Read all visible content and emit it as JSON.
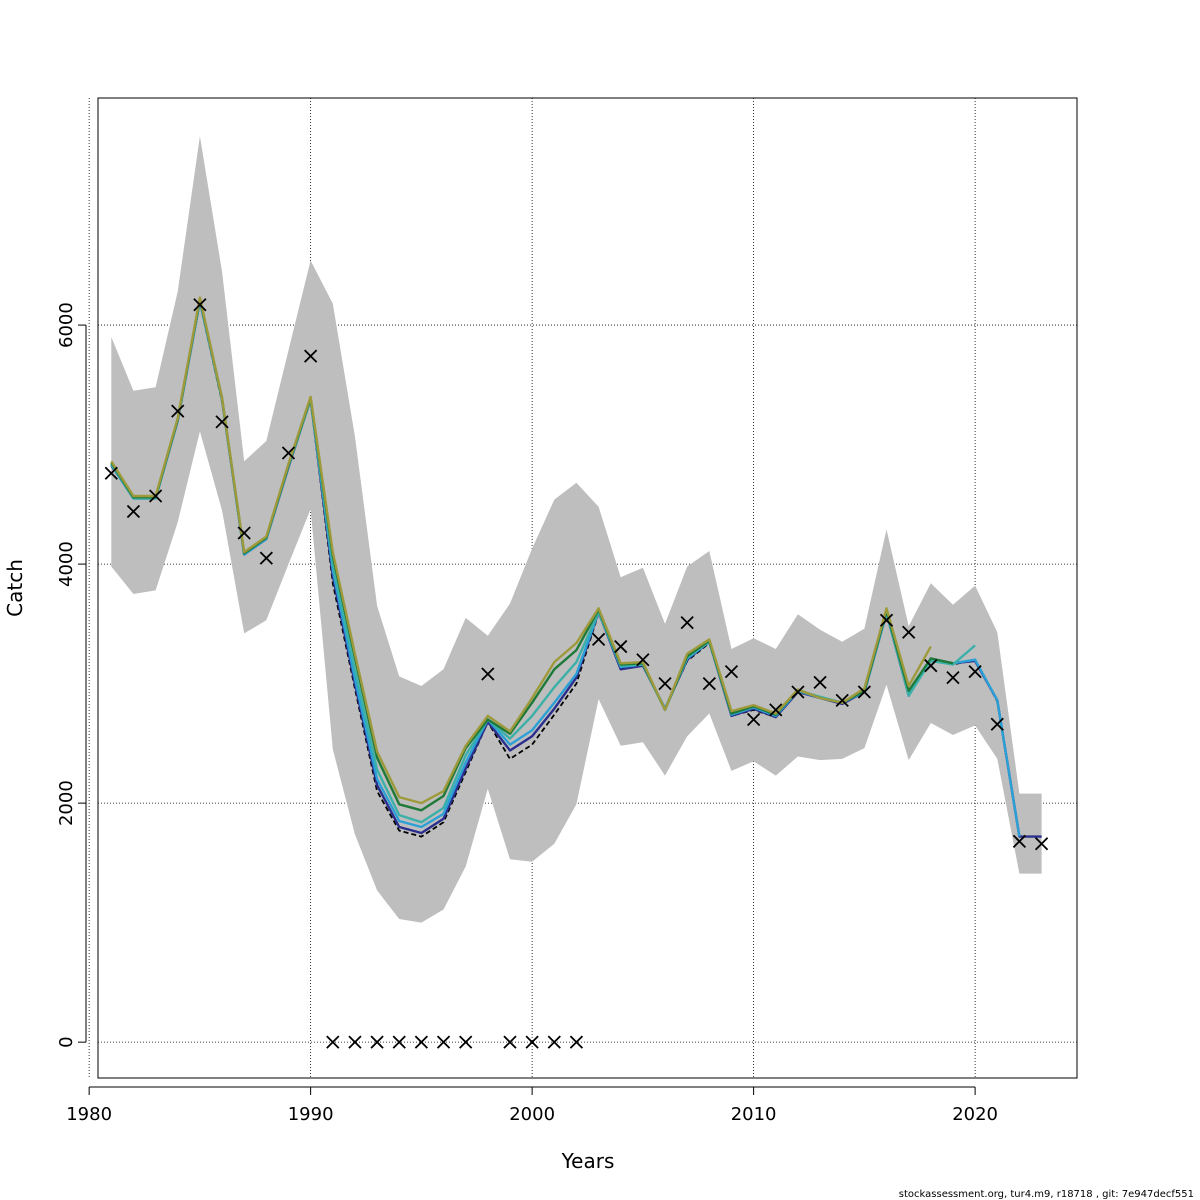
{
  "chart_data": {
    "type": "line",
    "xlabel": "Years",
    "ylabel": "Catch",
    "xlim": [
      1980.4,
      2024.6
    ],
    "ylim": [
      -300,
      7900
    ],
    "x_ticks": [
      1980,
      1990,
      2000,
      2010,
      2020
    ],
    "y_ticks": [
      0,
      2000,
      4000,
      6000
    ],
    "grid": true,
    "footer": "stockassessment.org, tur4.m9, r18718 , git: 7e947decf551",
    "band": {
      "color": "#bebebe",
      "x": [
        1981,
        1982,
        1983,
        1984,
        1985,
        1986,
        1987,
        1988,
        1989,
        1990,
        1991,
        1992,
        1993,
        1994,
        1995,
        1996,
        1997,
        1998,
        1999,
        2000,
        2001,
        2002,
        2003,
        2004,
        2005,
        2006,
        2007,
        2008,
        2009,
        2010,
        2011,
        2012,
        2013,
        2014,
        2015,
        2016,
        2017,
        2018,
        2019,
        2020,
        2021,
        2022,
        2023
      ],
      "upper": [
        5900,
        5450,
        5480,
        6280,
        7580,
        6450,
        4860,
        5030,
        5790,
        6540,
        6180,
        5070,
        3650,
        3060,
        2980,
        3120,
        3550,
        3400,
        3670,
        4130,
        4540,
        4680,
        4480,
        3890,
        3970,
        3500,
        3980,
        4110,
        3290,
        3380,
        3290,
        3580,
        3450,
        3350,
        3460,
        4290,
        3480,
        3840,
        3660,
        3820,
        3430,
        2080,
        2080
      ],
      "lower": [
        3980,
        3750,
        3780,
        4350,
        5110,
        4450,
        3420,
        3530,
        4000,
        4460,
        2450,
        1740,
        1270,
        1030,
        1000,
        1110,
        1470,
        2120,
        1530,
        1510,
        1660,
        1990,
        2870,
        2480,
        2510,
        2230,
        2560,
        2750,
        2270,
        2350,
        2230,
        2390,
        2360,
        2370,
        2460,
        2990,
        2360,
        2670,
        2570,
        2650,
        2370,
        1410,
        1410
      ]
    },
    "series": [
      {
        "color": "#000000",
        "dashed": true,
        "x": [
          1981,
          1982,
          1983,
          1984,
          1985,
          1986,
          1987,
          1988,
          1989,
          1990,
          1991,
          1992,
          1993,
          1994,
          1995,
          1996,
          1997,
          1998,
          1999,
          2000,
          2001,
          2002,
          2003,
          2004,
          2005,
          2006,
          2007,
          2008,
          2009,
          2010,
          2011,
          2012,
          2013,
          2014,
          2015,
          2016,
          2017,
          2018,
          2019,
          2020,
          2021,
          2022,
          2023
        ],
        "y": [
          4820,
          4560,
          4560,
          5200,
          6190,
          5360,
          4090,
          4210,
          4810,
          5380,
          3840,
          2960,
          2100,
          1770,
          1720,
          1840,
          2260,
          2680,
          2370,
          2490,
          2740,
          3000,
          3590,
          3130,
          3150,
          2790,
          3190,
          3340,
          2730,
          2780,
          2720,
          2930,
          2880,
          2830,
          2930,
          3580,
          2920,
          3200,
          3160,
          3200,
          2850,
          1720,
          1720
        ]
      },
      {
        "color": "#2b2e8c",
        "x": [
          1981,
          1982,
          1983,
          1984,
          1985,
          1986,
          1987,
          1988,
          1989,
          1990,
          1991,
          1992,
          1993,
          1994,
          1995,
          1996,
          1997,
          1998,
          1999,
          2000,
          2001,
          2002,
          2003,
          2004,
          2005,
          2006,
          2007,
          2008,
          2009,
          2010,
          2011,
          2012,
          2013,
          2014,
          2015,
          2016,
          2017,
          2018,
          2019,
          2020,
          2021,
          2022,
          2023
        ],
        "y": [
          4830,
          4550,
          4550,
          5200,
          6200,
          5380,
          4080,
          4210,
          4810,
          5380,
          3900,
          3000,
          2150,
          1800,
          1750,
          1870,
          2290,
          2680,
          2440,
          2560,
          2790,
          3050,
          3600,
          3120,
          3150,
          2790,
          3200,
          3350,
          2730,
          2790,
          2720,
          2930,
          2880,
          2830,
          2930,
          3590,
          2900,
          3210,
          3170,
          3190,
          2860,
          1720,
          1720
        ]
      },
      {
        "color": "#2aa0d6",
        "x": [
          1981,
          1982,
          1983,
          1984,
          1985,
          1986,
          1987,
          1988,
          1989,
          1990,
          1991,
          1992,
          1993,
          1994,
          1995,
          1996,
          1997,
          1998,
          1999,
          2000,
          2001,
          2002,
          2003,
          2004,
          2005,
          2006,
          2007,
          2008,
          2009,
          2010,
          2011,
          2012,
          2013,
          2014,
          2015,
          2016,
          2017,
          2018,
          2019,
          2020,
          2021,
          2022
        ],
        "y": [
          4830,
          4550,
          4550,
          5200,
          6200,
          5380,
          4080,
          4210,
          4820,
          5380,
          3950,
          3040,
          2200,
          1850,
          1800,
          1910,
          2340,
          2700,
          2490,
          2610,
          2840,
          3080,
          3600,
          3140,
          3160,
          2790,
          3210,
          3350,
          2740,
          2800,
          2730,
          2940,
          2880,
          2840,
          2930,
          3590,
          2910,
          3200,
          3170,
          3200,
          2860,
          1720
        ]
      },
      {
        "color": "#3ab0a8",
        "x": [
          1981,
          1982,
          1983,
          1984,
          1985,
          1986,
          1987,
          1988,
          1989,
          1990,
          1991,
          1992,
          1993,
          1994,
          1995,
          1996,
          1997,
          1998,
          1999,
          2000,
          2001,
          2002,
          2003,
          2004,
          2005,
          2006,
          2007,
          2008,
          2009,
          2010,
          2011,
          2012,
          2013,
          2014,
          2015,
          2016,
          2017,
          2018,
          2019,
          2020
        ],
        "y": [
          4840,
          4550,
          4550,
          5210,
          6210,
          5380,
          4090,
          4220,
          4820,
          5380,
          4000,
          3120,
          2280,
          1900,
          1840,
          1960,
          2400,
          2700,
          2540,
          2730,
          2970,
          3180,
          3600,
          3150,
          3160,
          2780,
          3220,
          3350,
          2750,
          2810,
          2750,
          2940,
          2890,
          2840,
          2940,
          3600,
          2900,
          3190,
          3160,
          3320
        ]
      },
      {
        "color": "#1f7a3a",
        "x": [
          1981,
          1982,
          1983,
          1984,
          1985,
          1986,
          1987,
          1988,
          1989,
          1990,
          1991,
          1992,
          1993,
          1994,
          1995,
          1996,
          1997,
          1998,
          1999,
          2000,
          2001,
          2002,
          2003,
          2004,
          2005,
          2006,
          2007,
          2008,
          2009,
          2010,
          2011,
          2012,
          2013,
          2014,
          2015,
          2016,
          2017,
          2018,
          2019
        ],
        "y": [
          4850,
          4560,
          4560,
          5210,
          6220,
          5390,
          4090,
          4220,
          4830,
          5390,
          4070,
          3220,
          2380,
          1990,
          1940,
          2060,
          2460,
          2700,
          2580,
          2840,
          3120,
          3280,
          3620,
          3160,
          3170,
          2780,
          3230,
          3360,
          2750,
          2810,
          2740,
          2950,
          2880,
          2840,
          2940,
          3610,
          2940,
          3210,
          3170
        ]
      },
      {
        "color": "#9e9a3c",
        "x": [
          1981,
          1982,
          1983,
          1984,
          1985,
          1986,
          1987,
          1988,
          1989,
          1990,
          1991,
          1992,
          1993,
          1994,
          1995,
          1996,
          1997,
          1998,
          1999,
          2000,
          2001,
          2002,
          2003,
          2004,
          2005,
          2006,
          2007,
          2008,
          2009,
          2010,
          2011,
          2012,
          2013,
          2014,
          2015,
          2016,
          2017,
          2018
        ],
        "y": [
          4860,
          4570,
          4570,
          5220,
          6230,
          5390,
          4100,
          4230,
          4840,
          5400,
          4100,
          3250,
          2430,
          2050,
          2000,
          2100,
          2480,
          2730,
          2600,
          2880,
          3180,
          3340,
          3630,
          3170,
          3180,
          2780,
          3250,
          3370,
          2770,
          2820,
          2750,
          2950,
          2880,
          2840,
          2960,
          3630,
          2980,
          3310
        ]
      }
    ],
    "observations": {
      "x": [
        1981,
        1982,
        1983,
        1984,
        1985,
        1986,
        1987,
        1988,
        1989,
        1990,
        1991,
        1992,
        1993,
        1994,
        1995,
        1996,
        1997,
        1998,
        1999,
        2000,
        2001,
        2002,
        2003,
        2004,
        2005,
        2006,
        2007,
        2008,
        2009,
        2010,
        2011,
        2012,
        2013,
        2014,
        2015,
        2016,
        2017,
        2018,
        2019,
        2020,
        2021,
        2022,
        2023
      ],
      "y": [
        4760,
        4440,
        4570,
        5280,
        6170,
        5190,
        4260,
        4050,
        4930,
        5740,
        0,
        0,
        0,
        0,
        0,
        0,
        0,
        3080,
        0,
        0,
        0,
        0,
        3370,
        3310,
        3200,
        3000,
        3510,
        3000,
        3100,
        2700,
        2780,
        2930,
        3010,
        2860,
        2930,
        3530,
        3430,
        3150,
        3050,
        3100,
        2660,
        1680,
        1660
      ]
    }
  }
}
